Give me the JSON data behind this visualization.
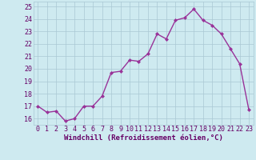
{
  "x": [
    0,
    1,
    2,
    3,
    4,
    5,
    6,
    7,
    8,
    9,
    10,
    11,
    12,
    13,
    14,
    15,
    16,
    17,
    18,
    19,
    20,
    21,
    22,
    23
  ],
  "y": [
    17.0,
    16.5,
    16.6,
    15.8,
    16.0,
    17.0,
    17.0,
    17.8,
    19.7,
    19.8,
    20.7,
    20.6,
    21.2,
    22.8,
    22.4,
    23.9,
    24.1,
    24.8,
    23.9,
    23.5,
    22.8,
    21.6,
    20.4,
    16.7
  ],
  "line_color": "#993399",
  "marker": "D",
  "marker_size": 2.0,
  "linewidth": 1.0,
  "xlabel": "Windchill (Refroidissement éolien,°C)",
  "ylim": [
    15.5,
    25.4
  ],
  "xlim": [
    -0.5,
    23.5
  ],
  "yticks": [
    16,
    17,
    18,
    19,
    20,
    21,
    22,
    23,
    24,
    25
  ],
  "xtick_labels": [
    "0",
    "1",
    "2",
    "3",
    "4",
    "5",
    "6",
    "7",
    "8",
    "9",
    "10",
    "11",
    "12",
    "13",
    "14",
    "15",
    "16",
    "17",
    "18",
    "19",
    "20",
    "21",
    "22",
    "23"
  ],
  "bg_color": "#ceeaf0",
  "grid_color": "#aac8d4",
  "xlabel_color": "#660066",
  "tick_color": "#660066",
  "xlabel_fontsize": 6.5,
  "tick_fontsize": 6.0
}
